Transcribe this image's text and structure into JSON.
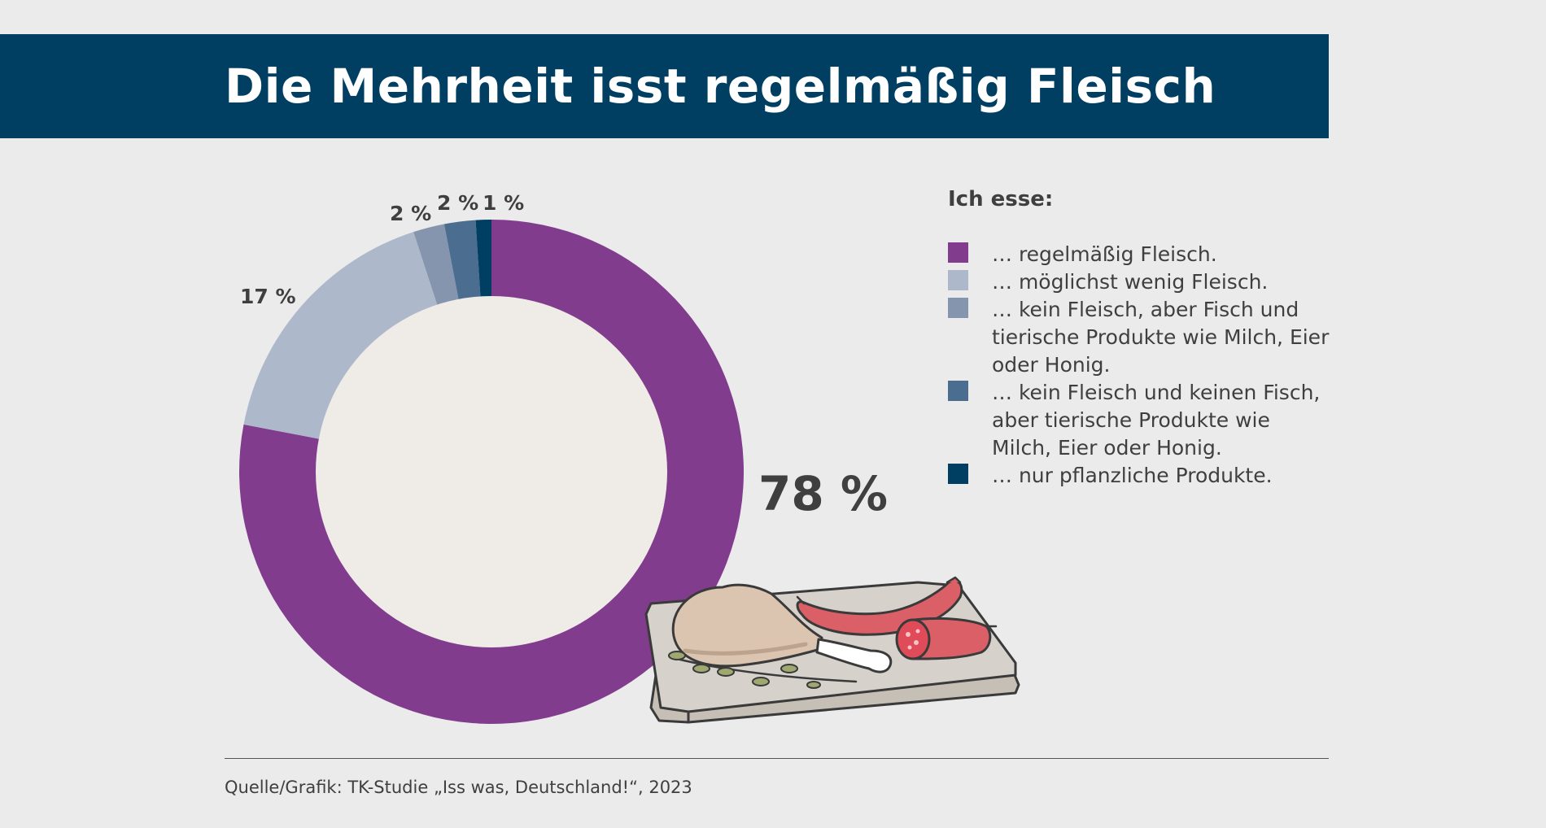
{
  "title": "Die Mehrheit isst regelmäßig Fleisch",
  "source": "Quelle/Grafik: TK-Studie „Iss was, Deutschland!“, 2023",
  "chart_data": {
    "type": "pie",
    "variant": "donut",
    "title": "Die Mehrheit isst regelmäßig Fleisch",
    "legend_title": "Ich esse:",
    "categories": [
      "… regelmäßig Fleisch.",
      "… möglichst wenig Fleisch.",
      "… kein Fleisch, aber Fisch und tierische Produkte wie Milch, Eier oder Honig.",
      "… kein Fleisch und keinen Fisch, aber tierische Produkte wie Milch, Eier oder Honig.",
      "… nur pflanzliche Produkte."
    ],
    "values": [
      78,
      17,
      2,
      2,
      1
    ],
    "labels": [
      "78 %",
      "17 %",
      "2 %",
      "2 %",
      "1 %"
    ],
    "colors": [
      "#823c8e",
      "#adb8ca",
      "#8595ad",
      "#4b6d90",
      "#003f62"
    ],
    "legend_position": "right"
  },
  "illustration": {
    "name": "meat-board-illustration"
  }
}
